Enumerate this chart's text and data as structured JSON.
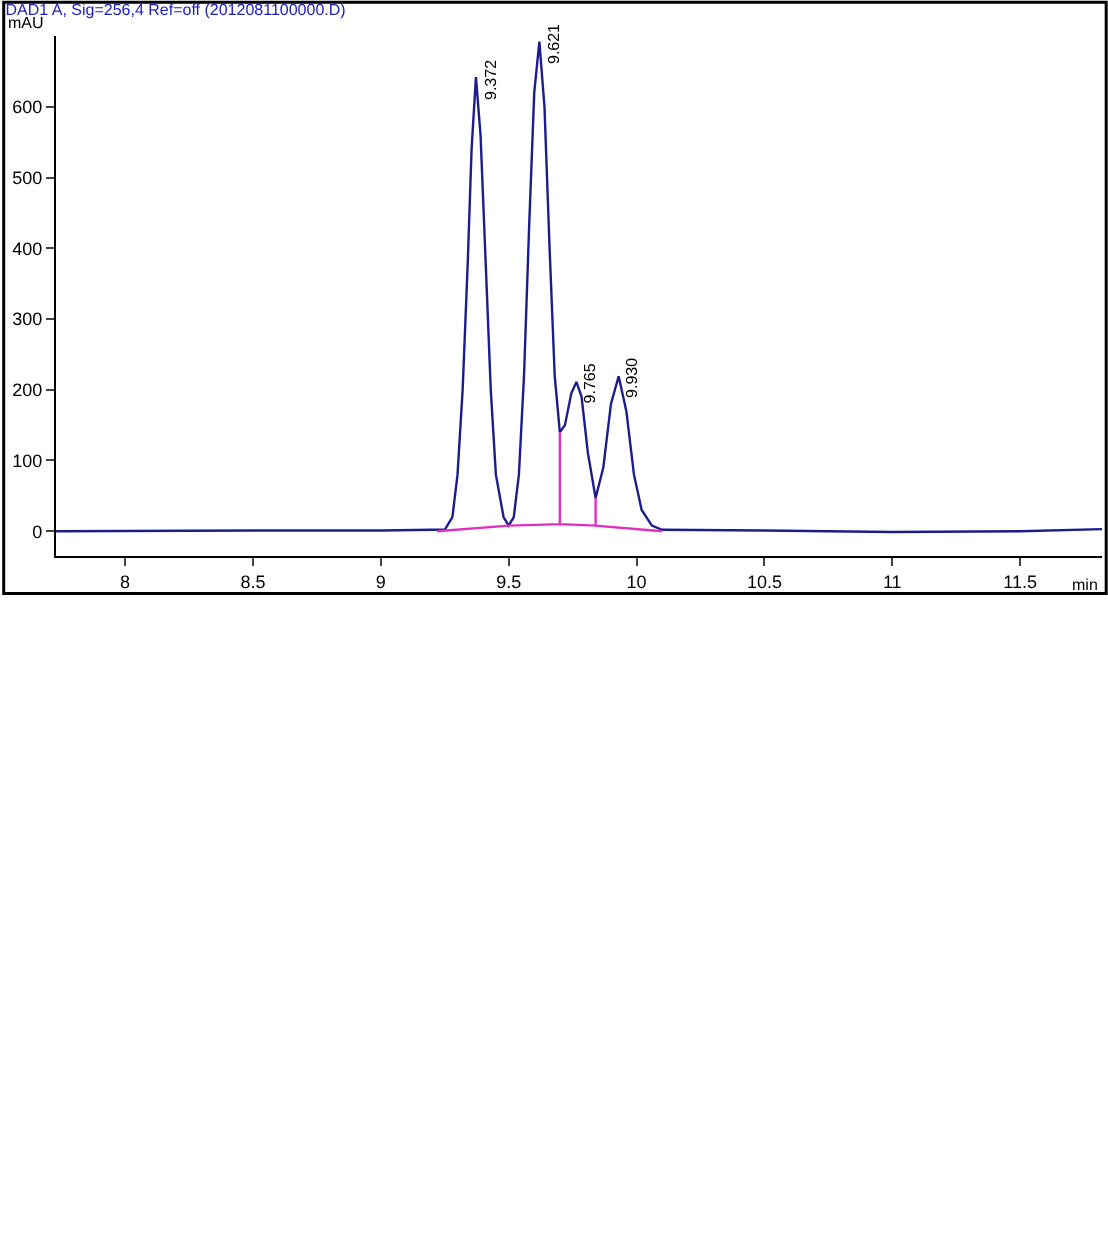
{
  "chart_data": {
    "type": "line",
    "title": "DAD1 A, Sig=256,4 Ref=off (2012081100000.D)",
    "xlabel": "min",
    "ylabel": "mAU",
    "xlim": [
      7.73,
      11.82
    ],
    "xticks": [
      8,
      8.5,
      9,
      9.5,
      10,
      10.5,
      11,
      11.5
    ],
    "ylim": [
      -35,
      700
    ],
    "yticks": [
      0,
      100,
      200,
      300,
      400,
      500,
      600
    ],
    "marker": "none",
    "line_style": "solid",
    "series": [
      {
        "color": "#1c1c8e",
        "x": [
          7.73,
          8.5,
          9.0,
          9.2,
          9.25,
          9.28,
          9.3,
          9.32,
          9.34,
          9.355,
          9.372,
          9.39,
          9.41,
          9.43,
          9.45,
          9.48,
          9.5,
          9.52,
          9.54,
          9.56,
          9.58,
          9.6,
          9.62,
          9.64,
          9.66,
          9.68,
          9.7,
          9.72,
          9.745,
          9.765,
          9.785,
          9.81,
          9.84,
          9.87,
          9.9,
          9.93,
          9.96,
          9.99,
          10.02,
          10.06,
          10.1,
          10.5,
          11.0,
          11.5,
          11.82
        ],
        "values": [
          0,
          1,
          1,
          2,
          2,
          20,
          80,
          200,
          380,
          540,
          642,
          560,
          380,
          200,
          80,
          20,
          8,
          20,
          80,
          220,
          430,
          620,
          692,
          600,
          400,
          220,
          140,
          150,
          195,
          211,
          190,
          110,
          47,
          90,
          180,
          219,
          170,
          80,
          30,
          8,
          2,
          1,
          -1,
          0,
          3
        ]
      },
      {
        "color": "#e030c0",
        "x": [
          9.22,
          9.5,
          9.7,
          9.7,
          9.7,
          9.84,
          9.84,
          9.84,
          10.1
        ],
        "values": [
          0,
          8,
          10,
          140,
          10,
          8,
          47,
          8,
          0
        ]
      }
    ],
    "annotations": [
      {
        "text": "9.372",
        "x": 9.372,
        "y": 642
      },
      {
        "text": "9.621",
        "x": 9.62,
        "y": 692
      },
      {
        "text": "9.765",
        "x": 9.765,
        "y": 211
      },
      {
        "text": "9.930",
        "x": 9.93,
        "y": 219
      }
    ]
  }
}
